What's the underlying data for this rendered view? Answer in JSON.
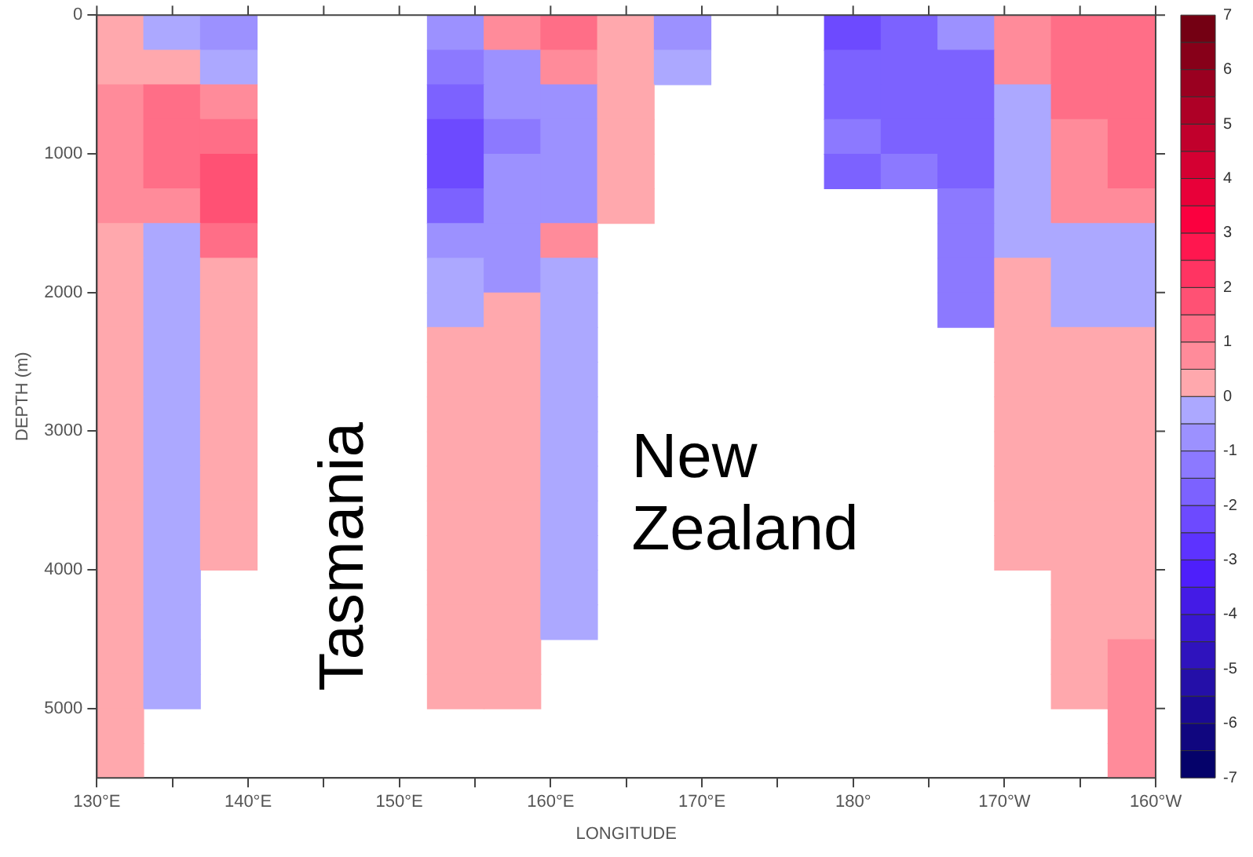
{
  "chart_data": {
    "type": "heatmap",
    "xlabel": "LONGITUDE",
    "ylabel": "DEPTH (m)",
    "x": [
      131.2,
      134.95,
      138.7,
      142.45,
      146.2,
      149.95,
      153.7,
      157.45,
      161.2,
      164.95,
      168.7,
      172.45,
      176.2,
      179.95,
      183.7,
      187.45,
      191.2,
      194.95,
      198.7
    ],
    "xlim": [
      130,
      200
    ],
    "xticks": [
      {
        "value": 130,
        "label": "130°E"
      },
      {
        "value": 135,
        "label": null
      },
      {
        "value": 140,
        "label": "140°E"
      },
      {
        "value": 145,
        "label": null
      },
      {
        "value": 150,
        "label": "150°E"
      },
      {
        "value": 155,
        "label": null
      },
      {
        "value": 160,
        "label": "160°E"
      },
      {
        "value": 165,
        "label": null
      },
      {
        "value": 170,
        "label": "170°E"
      },
      {
        "value": 175,
        "label": null
      },
      {
        "value": 180,
        "label": "180°"
      },
      {
        "value": 185,
        "label": null
      },
      {
        "value": 190,
        "label": "170°W"
      },
      {
        "value": 195,
        "label": null
      },
      {
        "value": 200,
        "label": "160°W"
      }
    ],
    "ylim": [
      5500,
      0
    ],
    "yticks": [
      0,
      1000,
      2000,
      3000,
      4000,
      5000
    ],
    "clim": [
      -7,
      7
    ],
    "cticks": [
      -7,
      -6,
      -5,
      -4,
      -3,
      -2,
      -1,
      0,
      1,
      2,
      3,
      4,
      5,
      6,
      7
    ],
    "cells": [
      [
        0.3,
        -0.5,
        -0.7,
        null,
        null,
        null,
        -1.0,
        0.6,
        1.0,
        0.4,
        -0.7,
        null,
        null,
        -2.5,
        -2.0,
        -1.0,
        0.5,
        1.0,
        1.1
      ],
      [
        0.3,
        0.3,
        -0.4,
        null,
        null,
        null,
        -1.3,
        -0.6,
        0.5,
        0.4,
        -0.4,
        null,
        null,
        -1.8,
        -1.8,
        -1.6,
        0.5,
        1.0,
        1.1
      ],
      [
        0.8,
        1.0,
        0.8,
        null,
        null,
        null,
        -1.7,
        -1.0,
        -0.6,
        0.4,
        null,
        null,
        null,
        -1.8,
        -1.8,
        -1.6,
        -0.4,
        1.0,
        1.1
      ],
      [
        0.8,
        1.3,
        1.2,
        null,
        null,
        null,
        -2.2,
        -1.3,
        -0.6,
        0.4,
        null,
        null,
        null,
        -1.5,
        -1.7,
        -1.6,
        -0.4,
        0.5,
        1.1
      ],
      [
        0.8,
        1.0,
        1.5,
        null,
        null,
        null,
        -2.2,
        -1.0,
        -0.6,
        0.4,
        null,
        null,
        null,
        -1.6,
        -1.5,
        -1.6,
        -0.4,
        0.5,
        1.1
      ],
      [
        0.5,
        0.5,
        1.5,
        null,
        null,
        null,
        -1.7,
        -1.0,
        -0.6,
        0.4,
        null,
        null,
        null,
        null,
        null,
        -1.2,
        -0.4,
        0.5,
        0.9
      ],
      [
        0.3,
        -0.3,
        1.2,
        null,
        null,
        null,
        -1.0,
        -0.6,
        0.5,
        null,
        null,
        null,
        null,
        null,
        null,
        -1.2,
        -0.4,
        -0.4,
        -0.4
      ],
      [
        0.3,
        -0.3,
        0.4,
        null,
        null,
        null,
        -0.5,
        -0.6,
        -0.4,
        null,
        null,
        null,
        null,
        null,
        null,
        -1.2,
        0.4,
        -0.4,
        -0.4
      ],
      [
        0.3,
        -0.3,
        0.4,
        null,
        null,
        null,
        -0.5,
        0.4,
        -0.4,
        null,
        null,
        null,
        null,
        null,
        null,
        -1.2,
        0.4,
        -0.4,
        -0.4
      ],
      [
        0.3,
        -0.3,
        0.4,
        null,
        null,
        null,
        0.4,
        0.4,
        -0.4,
        null,
        null,
        null,
        null,
        null,
        null,
        null,
        0.4,
        0.4,
        0.4
      ],
      [
        0.3,
        -0.3,
        0.4,
        null,
        null,
        null,
        0.4,
        0.4,
        -0.4,
        null,
        null,
        null,
        null,
        null,
        null,
        null,
        0.4,
        0.4,
        0.4
      ],
      [
        0.3,
        -0.3,
        0.4,
        null,
        null,
        null,
        0.4,
        0.4,
        -0.4,
        null,
        null,
        null,
        null,
        null,
        null,
        null,
        0.4,
        0.4,
        0.4
      ],
      [
        0.3,
        -0.3,
        0.4,
        null,
        null,
        null,
        0.4,
        0.4,
        -0.4,
        null,
        null,
        null,
        null,
        null,
        null,
        null,
        0.4,
        0.4,
        0.4
      ],
      [
        0.3,
        -0.3,
        0.4,
        null,
        null,
        null,
        0.4,
        0.4,
        -0.4,
        null,
        null,
        null,
        null,
        null,
        null,
        null,
        0.4,
        0.4,
        0.4
      ],
      [
        0.3,
        -0.3,
        0.4,
        null,
        null,
        null,
        0.4,
        0.4,
        -0.4,
        null,
        null,
        null,
        null,
        null,
        null,
        null,
        0.4,
        0.4,
        0.4
      ],
      [
        0.3,
        -0.3,
        0.4,
        null,
        null,
        null,
        0.4,
        0.4,
        -0.4,
        null,
        null,
        null,
        null,
        null,
        null,
        null,
        0.4,
        0.4,
        0.4
      ],
      [
        0.3,
        -0.3,
        null,
        null,
        null,
        null,
        0.4,
        0.4,
        -0.4,
        null,
        null,
        null,
        null,
        null,
        null,
        null,
        null,
        0.4,
        0.4
      ],
      [
        0.3,
        -0.3,
        null,
        null,
        null,
        null,
        0.4,
        0.4,
        -0.4,
        null,
        null,
        null,
        null,
        null,
        null,
        null,
        null,
        0.4,
        0.4
      ],
      [
        0.3,
        -0.3,
        null,
        null,
        null,
        null,
        0.4,
        0.4,
        null,
        null,
        null,
        null,
        null,
        null,
        null,
        null,
        null,
        0.4,
        0.8
      ],
      [
        0.3,
        -0.3,
        null,
        null,
        null,
        null,
        0.4,
        0.4,
        null,
        null,
        null,
        null,
        null,
        null,
        null,
        null,
        null,
        0.4,
        0.8
      ],
      [
        0.3,
        null,
        null,
        null,
        null,
        null,
        null,
        null,
        null,
        null,
        null,
        null,
        null,
        null,
        null,
        null,
        null,
        null,
        0.8
      ],
      [
        0.3,
        null,
        null,
        null,
        null,
        null,
        null,
        null,
        null,
        null,
        null,
        null,
        null,
        null,
        null,
        null,
        null,
        null,
        0.8
      ]
    ],
    "annotations": [
      "Tasmania",
      "New Zealand"
    ]
  }
}
